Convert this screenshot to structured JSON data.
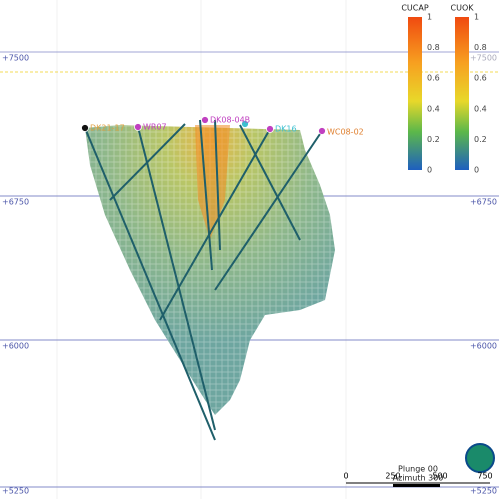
{
  "elevations": [
    "+7500",
    "+6750",
    "+6000",
    "+5250"
  ],
  "colorbars": [
    {
      "title": "CUCAP",
      "ticks": [
        "1",
        "0.8",
        "0.6",
        "0.4",
        "0.2",
        "0"
      ]
    },
    {
      "title": "CUOK",
      "ticks": [
        "1",
        "0.8",
        "0.6",
        "0.4",
        "0.2",
        "0"
      ]
    }
  ],
  "drillholes": [
    "DK21-17",
    "WR07",
    "DK08-04B",
    "DK16",
    "WC08-02"
  ],
  "orientation": {
    "plunge": "Plunge 00",
    "azimuth": "Azimuth 300"
  },
  "scale_bar": [
    "0",
    "250",
    "500",
    "750"
  ]
}
